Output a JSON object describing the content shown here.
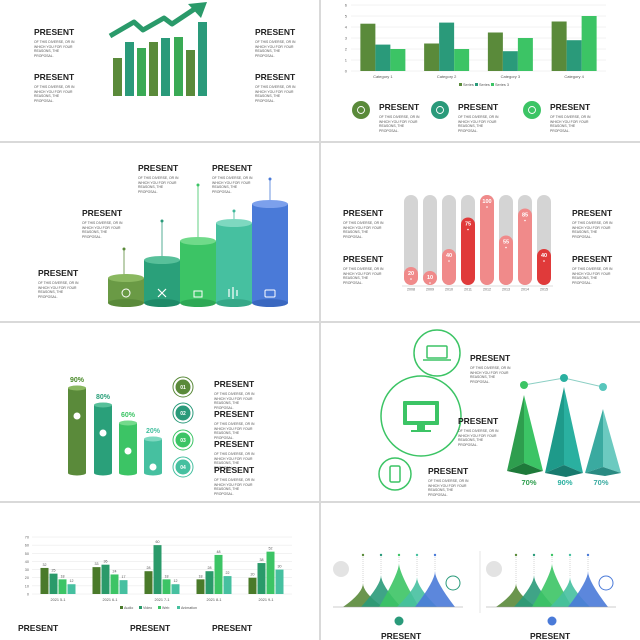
{
  "heading": "PRESENT",
  "body_text": "OF THIS DIVERSE, OR IN WHICH YOU FOR YOUR REASONS, THE PROPOSAL.",
  "colors": {
    "dark_green": "#5a8a3a",
    "teal": "#2a9a7a",
    "green": "#3cc465",
    "red": "#e03a3a",
    "blue": "#4a7ad8"
  },
  "slide2": {
    "chart_data": {
      "type": "bar",
      "categories": [
        "Category 1",
        "Category 2",
        "Category 3",
        "Category 4"
      ],
      "series": [
        {
          "name": "Series 1",
          "values": [
            4.3,
            2.5,
            3.5,
            4.5
          ]
        },
        {
          "name": "Series 2",
          "values": [
            2.4,
            4.4,
            1.8,
            2.8
          ]
        },
        {
          "name": "Series 3",
          "values": [
            2,
            2,
            3,
            5
          ]
        }
      ],
      "y_ticks": [
        "0",
        "1",
        "2",
        "3",
        "4",
        "5",
        "6"
      ],
      "ylim": [
        0,
        6
      ],
      "legend": "bottom"
    }
  },
  "slide4": {
    "chart_data": {
      "type": "bar",
      "categories": [
        "2008",
        "2009",
        "2010",
        "2011",
        "2012",
        "2013",
        "2014",
        "2015"
      ],
      "values": [
        20,
        10,
        40,
        75,
        100,
        55,
        85,
        40
      ],
      "value_labels": [
        "20",
        "10",
        "40",
        "75",
        "100",
        "55",
        "85",
        "40"
      ]
    }
  },
  "slide5": {
    "percents": [
      "90%",
      "80%",
      "60%",
      "20%"
    ],
    "numbers": [
      "01",
      "02",
      "03",
      "04"
    ]
  },
  "slide6": {
    "percents": [
      "70%",
      "90%",
      "70%"
    ]
  },
  "slide7": {
    "chart_data": {
      "type": "bar",
      "categories": [
        "2021 5-1",
        "2021 6-1",
        "2021 7-1",
        "2021 8-1",
        "2021 9-1"
      ],
      "series": [
        {
          "name": "Audio",
          "values": [
            32,
            33,
            28,
            18,
            20
          ]
        },
        {
          "name": "Video",
          "values": [
            25,
            36,
            60,
            28,
            38
          ]
        },
        {
          "name": "Web",
          "values": [
            18,
            24,
            18,
            48,
            52
          ]
        },
        {
          "name": "Animation",
          "values": [
            12,
            17,
            12,
            22,
            30
          ]
        }
      ],
      "y_ticks": [
        "0",
        "10",
        "20",
        "30",
        "40",
        "50",
        "60",
        "70"
      ],
      "ylim": [
        0,
        70
      ],
      "value_labels": [
        [
          "32",
          "25",
          "18",
          "12"
        ],
        [
          "33",
          "36",
          "24",
          "17"
        ],
        [
          "28",
          "60",
          "18",
          "12"
        ],
        [
          "18",
          "28",
          "48",
          "22"
        ],
        [
          "20",
          "38",
          "52",
          "30"
        ]
      ],
      "legend": "bottom"
    }
  }
}
